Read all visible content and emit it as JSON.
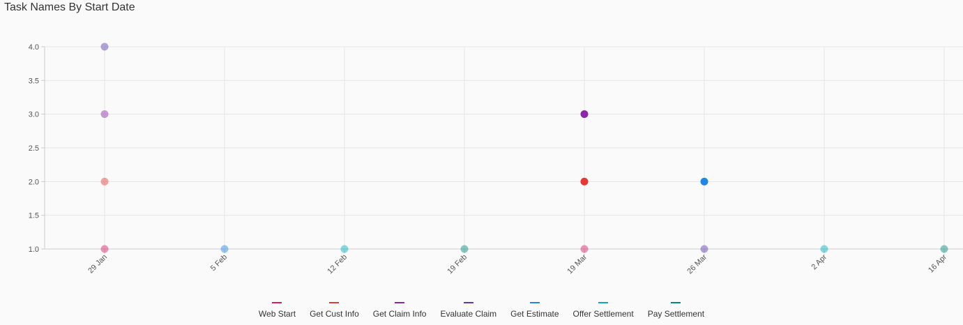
{
  "chart_data": {
    "type": "scatter",
    "title": "Task Names By Start Date",
    "xlabel": "",
    "ylabel": "",
    "x_ticks": [
      "29 Jan",
      "5 Feb",
      "12 Feb",
      "19 Feb",
      "19 Mar",
      "26 Mar",
      "2 Apr",
      "16 Apr"
    ],
    "y_ticks": [
      "1.0",
      "1.5",
      "2.0",
      "2.5",
      "3.0",
      "3.5",
      "4.0"
    ],
    "ylim": [
      1,
      4
    ],
    "grid": true,
    "legend_position": "bottom",
    "series": [
      {
        "name": "Web Start",
        "color": "#d81b60",
        "points": [
          {
            "x": "29 Jan",
            "y": 1
          },
          {
            "x": "19 Mar",
            "y": 1
          }
        ]
      },
      {
        "name": "Get Cust Info",
        "color": "#e53935",
        "points": [
          {
            "x": "29 Jan",
            "y": 2
          },
          {
            "x": "19 Mar",
            "y": 2
          }
        ]
      },
      {
        "name": "Get Claim Info",
        "color": "#8e24aa",
        "points": [
          {
            "x": "29 Jan",
            "y": 3
          },
          {
            "x": "19 Mar",
            "y": 3
          }
        ]
      },
      {
        "name": "Evaluate Claim",
        "color": "#5e35b1",
        "points": [
          {
            "x": "29 Jan",
            "y": 4
          },
          {
            "x": "26 Mar",
            "y": 1
          }
        ]
      },
      {
        "name": "Get Estimate",
        "color": "#1e88e5",
        "points": [
          {
            "x": "5 Feb",
            "y": 1
          },
          {
            "x": "26 Mar",
            "y": 2
          }
        ]
      },
      {
        "name": "Offer Settlement",
        "color": "#00acc1",
        "points": [
          {
            "x": "12 Feb",
            "y": 1
          },
          {
            "x": "2 Apr",
            "y": 1
          }
        ]
      },
      {
        "name": "Pay Settlement",
        "color": "#00897b",
        "points": [
          {
            "x": "19 Feb",
            "y": 1
          },
          {
            "x": "16 Apr",
            "y": 1
          }
        ]
      }
    ],
    "highlighted_points": [
      {
        "series": "Get Cust Info",
        "x": "19 Mar",
        "y": 2
      },
      {
        "series": "Get Claim Info",
        "x": "19 Mar",
        "y": 3
      },
      {
        "series": "Get Estimate",
        "x": "26 Mar",
        "y": 2
      }
    ]
  }
}
